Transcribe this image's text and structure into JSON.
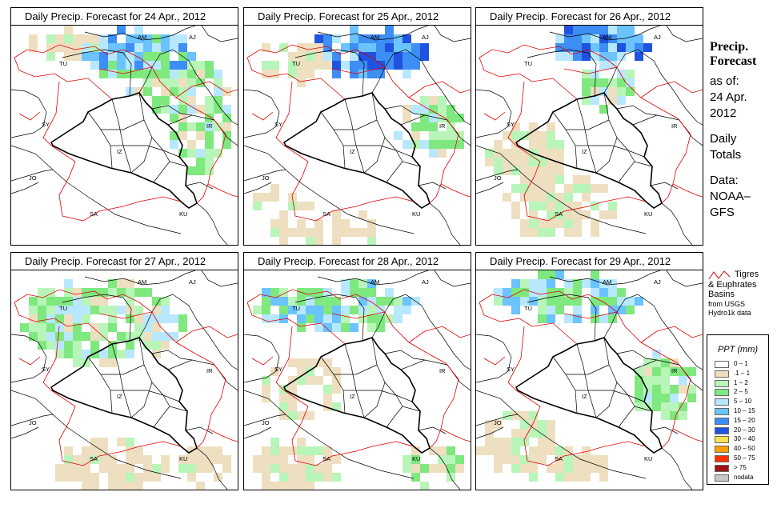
{
  "panels": [
    {
      "title": "Daily Precip. Forecast for  24 Apr., 2012",
      "variant": 0
    },
    {
      "title": "Daily Precip. Forecast for  25 Apr., 2012",
      "variant": 1
    },
    {
      "title": "Daily Precip. Forecast for  26 Apr., 2012",
      "variant": 2
    },
    {
      "title": "Daily Precip. Forecast for  27 Apr., 2012",
      "variant": 3
    },
    {
      "title": "Daily Precip. Forecast for  28 Apr., 2012",
      "variant": 4
    },
    {
      "title": "Daily Precip. Forecast for  29 Apr., 2012",
      "variant": 5
    }
  ],
  "country_labels": [
    "AM",
    "AJ",
    "TU",
    "SY",
    "IR",
    "JO",
    "SA",
    "KU",
    "IZ"
  ],
  "sidebar": {
    "line1": "Precip.",
    "line2": "Forecast",
    "line3": "as of:",
    "line4": "24 Apr.",
    "line5": "2012",
    "line6": "Daily",
    "line7": "Totals",
    "line8": "Data:",
    "line9": "NOAA–",
    "line10": "GFS"
  },
  "basin_legend": {
    "line1": "Tigres",
    "line2": "& Euphrates",
    "line3": "Basins",
    "line4": "from USGS",
    "line5": "Hydro1k data",
    "line_color": "#e00000"
  },
  "color_legend": {
    "title": "PPT (mm)",
    "entries": [
      {
        "label": "0 – 1",
        "color": "#ffffff"
      },
      {
        "label": ".1 – 1",
        "color": "#eedfc0"
      },
      {
        "label": "1 – 2",
        "color": "#b8f5b8"
      },
      {
        "label": "2 – 5",
        "color": "#7fe87f"
      },
      {
        "label": "5 – 10",
        "color": "#b8e8ff"
      },
      {
        "label": "10 – 15",
        "color": "#6bc3ff"
      },
      {
        "label": "15 – 20",
        "color": "#3d8ef5"
      },
      {
        "label": "20 – 30",
        "color": "#1f52e0"
      },
      {
        "label": "30 – 40",
        "color": "#ffe050"
      },
      {
        "label": "40 – 50",
        "color": "#ffa000"
      },
      {
        "label": "50 – 75",
        "color": "#ff3000"
      },
      {
        "label": "> 75",
        "color": "#a01010"
      },
      {
        "label": "nodata",
        "color": "#c8c8c8"
      }
    ]
  }
}
